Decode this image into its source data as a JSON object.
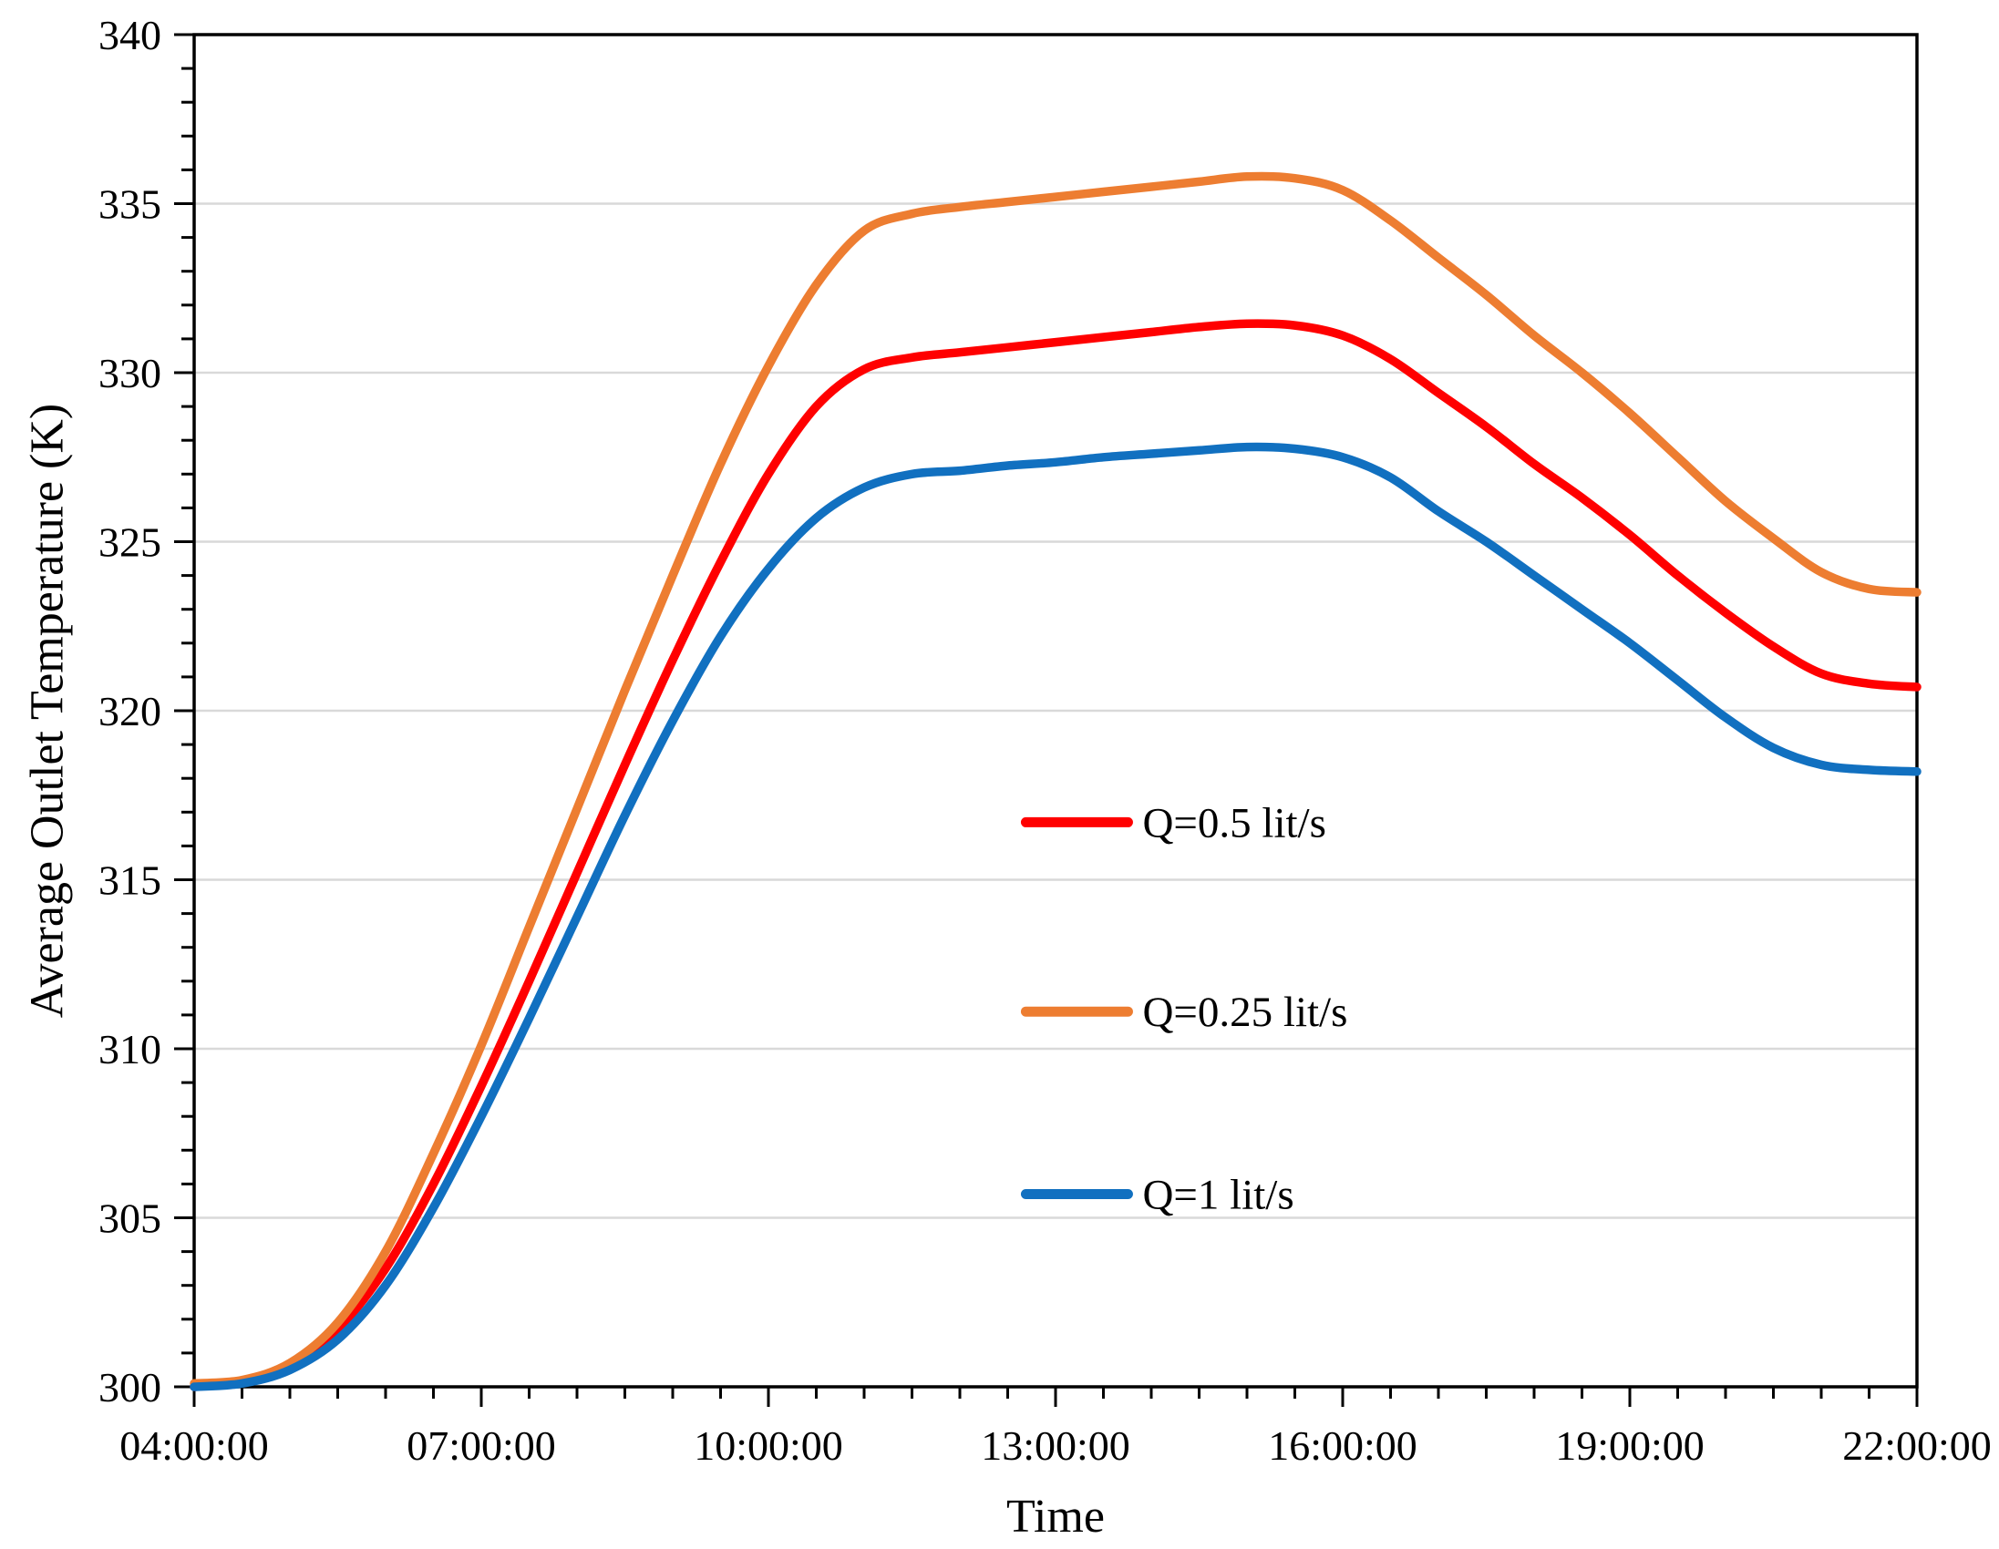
{
  "chart_data": {
    "type": "line",
    "title": "",
    "xlabel": "Time",
    "ylabel": "Average Outlet Temperature (K)",
    "grid": "horizontal-major-only",
    "legend_position": "inside-plot-middle",
    "colors": {
      "background": "#FFFFFF",
      "grid": "#D9D9D9",
      "axis": "#000000",
      "text": "#000000",
      "red_series": "#FF0000",
      "orange_series": "#ED7D31",
      "blue_series": "#1170C0"
    },
    "x_axis": {
      "min_hour": 4,
      "max_hour": 22,
      "minor_tick_step_hours": 0.5,
      "major_tick_hours": [
        4,
        7,
        10,
        13,
        16,
        19,
        22
      ],
      "major_tick_labels": [
        "04:00:00",
        "07:00:00",
        "10:00:00",
        "13:00:00",
        "16:00:00",
        "19:00:00",
        "22:00:00"
      ]
    },
    "y_axis": {
      "min": 300,
      "max": 340,
      "major_step": 5,
      "minor_step": 1,
      "major_tick_values": [
        300,
        305,
        310,
        315,
        320,
        325,
        330,
        335,
        340
      ],
      "major_tick_labels": [
        "300",
        "305",
        "310",
        "315",
        "320",
        "325",
        "330",
        "335",
        "340"
      ]
    },
    "hours": [
      4,
      4.5,
      5,
      5.5,
      6,
      6.5,
      7,
      7.5,
      8,
      8.5,
      9,
      9.5,
      10,
      10.5,
      11,
      11.5,
      12,
      12.5,
      13,
      13.5,
      14,
      14.5,
      15,
      15.5,
      16,
      16.5,
      17,
      17.5,
      18,
      18.5,
      19,
      19.5,
      20,
      20.5,
      21,
      21.5,
      22
    ],
    "series": [
      {
        "name": "Q=0.5 lit/s",
        "color": "#FF0000",
        "values": [
          300.0,
          300.15,
          300.6,
          301.7,
          303.5,
          306.0,
          308.9,
          312.0,
          315.2,
          318.4,
          321.5,
          324.4,
          327.0,
          329.0,
          330.1,
          330.45,
          330.6,
          330.75,
          330.9,
          331.05,
          331.2,
          331.35,
          331.45,
          331.4,
          331.1,
          330.4,
          329.4,
          328.4,
          327.3,
          326.3,
          325.2,
          324.0,
          322.9,
          321.9,
          321.1,
          320.8,
          320.7
        ]
      },
      {
        "name": "Q=0.25 lit/s",
        "color": "#ED7D31",
        "values": [
          300.1,
          300.2,
          300.7,
          301.9,
          304.0,
          306.9,
          310.1,
          313.6,
          317.1,
          320.6,
          324.0,
          327.3,
          330.2,
          332.6,
          334.2,
          334.7,
          334.9,
          335.05,
          335.2,
          335.35,
          335.5,
          335.65,
          335.8,
          335.75,
          335.4,
          334.5,
          333.4,
          332.3,
          331.1,
          330.0,
          328.8,
          327.5,
          326.2,
          325.1,
          324.1,
          323.6,
          323.5
        ]
      },
      {
        "name": "Q=1 lit/s",
        "color": "#1170C0",
        "values": [
          300.0,
          300.1,
          300.5,
          301.4,
          303.0,
          305.3,
          308.0,
          310.9,
          313.9,
          316.9,
          319.7,
          322.2,
          324.2,
          325.7,
          326.6,
          327.0,
          327.1,
          327.25,
          327.35,
          327.5,
          327.6,
          327.7,
          327.8,
          327.75,
          327.5,
          326.9,
          325.9,
          325.0,
          324.0,
          323.0,
          322.0,
          320.9,
          319.8,
          318.9,
          318.4,
          318.25,
          318.2
        ]
      }
    ],
    "legend": {
      "entries": [
        {
          "label": "Q=0.5 lit/s",
          "color": "#FF0000",
          "anchor_hour": 12.69,
          "anchor_temp": 316.7
        },
        {
          "label": "Q=0.25 lit/s",
          "color": "#ED7D31",
          "anchor_hour": 12.69,
          "anchor_temp": 311.1
        },
        {
          "label": "Q=1 lit/s",
          "color": "#1170C0",
          "anchor_hour": 12.69,
          "anchor_temp": 305.7
        }
      ]
    }
  }
}
